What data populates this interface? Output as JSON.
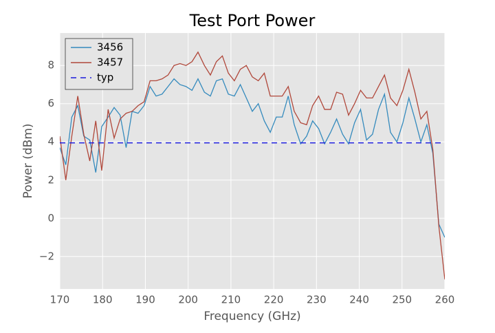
{
  "chart_data": {
    "type": "line",
    "title": "Test Port Power",
    "x_label": "Frequency (GHz)",
    "y_label": "Power (dBm)",
    "x": [
      170,
      171.4,
      172.8,
      174.2,
      175.6,
      177.0,
      178.4,
      179.8,
      181.3,
      182.7,
      184.1,
      185.5,
      186.9,
      188.3,
      189.7,
      191.1,
      192.5,
      193.9,
      195.3,
      196.7,
      198.1,
      199.5,
      200.9,
      202.3,
      203.8,
      205.2,
      206.6,
      208.0,
      209.4,
      210.8,
      212.2,
      213.6,
      215.0,
      216.4,
      217.8,
      219.2,
      220.6,
      222.0,
      223.4,
      224.8,
      226.3,
      227.7,
      229.1,
      230.5,
      231.9,
      233.3,
      234.7,
      236.1,
      237.5,
      238.9,
      240.3,
      241.7,
      243.1,
      244.5,
      245.9,
      247.3,
      248.8,
      250.2,
      251.6,
      253.0,
      254.4,
      255.8,
      257.2,
      258.6,
      260
    ],
    "series": [
      {
        "name": "3456",
        "color": "#348abd",
        "style": "solid",
        "values": [
          3.7,
          2.8,
          5.3,
          5.9,
          4.3,
          4.1,
          2.4,
          4.8,
          5.3,
          5.8,
          5.4,
          3.7,
          5.6,
          5.5,
          5.9,
          6.9,
          6.4,
          6.5,
          6.9,
          7.3,
          7.0,
          6.9,
          6.7,
          7.3,
          6.6,
          6.4,
          7.2,
          7.3,
          6.5,
          6.4,
          7.0,
          6.3,
          5.6,
          6.0,
          5.1,
          4.5,
          5.3,
          5.3,
          6.4,
          4.9,
          3.9,
          4.3,
          5.1,
          4.7,
          3.9,
          4.5,
          5.2,
          4.4,
          3.9,
          5.0,
          5.7,
          4.1,
          4.4,
          5.7,
          6.5,
          4.5,
          4.0,
          5.0,
          6.3,
          5.2,
          4.0,
          4.9,
          3.4,
          -0.3,
          -1.0
        ]
      },
      {
        "name": "3457",
        "color": "#b0473a",
        "style": "solid",
        "values": [
          4.3,
          2.0,
          4.3,
          6.4,
          4.4,
          3.0,
          5.1,
          2.5,
          5.7,
          4.2,
          5.2,
          5.5,
          5.6,
          5.9,
          6.1,
          7.2,
          7.2,
          7.3,
          7.5,
          8.0,
          8.1,
          8.0,
          8.2,
          8.7,
          8.0,
          7.5,
          8.2,
          8.5,
          7.6,
          7.2,
          7.8,
          8.0,
          7.4,
          7.2,
          7.6,
          6.4,
          6.4,
          6.4,
          6.9,
          5.6,
          5.0,
          4.9,
          5.9,
          6.4,
          5.7,
          5.7,
          6.6,
          6.5,
          5.4,
          6.0,
          6.7,
          6.3,
          6.3,
          6.9,
          7.5,
          6.3,
          5.9,
          6.7,
          7.8,
          6.6,
          5.2,
          5.6,
          3.6,
          -0.4,
          -3.2
        ]
      },
      {
        "name": "typ",
        "color": "#1a1adb",
        "style": "dashed",
        "x": [
          170,
          260
        ],
        "values": [
          3.95,
          3.95
        ]
      }
    ],
    "xlim": [
      170,
      260
    ],
    "xticks": [
      170,
      180,
      190,
      200,
      210,
      220,
      230,
      240,
      250,
      260
    ],
    "ylim": [
      -3.7,
      9.7
    ],
    "yticks": [
      {
        "value": -2,
        "label": "−2"
      },
      0,
      2,
      4,
      6,
      8
    ],
    "grid": true,
    "legend": "upper left"
  }
}
